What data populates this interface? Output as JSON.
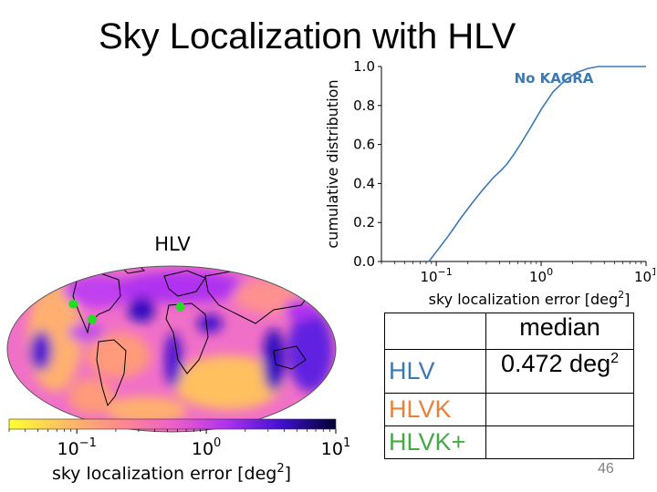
{
  "slide": {
    "title": "Sky Localization with HLV",
    "page_number": "46"
  },
  "chart_data": [
    {
      "type": "line",
      "annotation": "No KAGRA",
      "xlabel": "sky localization error [deg",
      "xlabel_sup": "2",
      "xlabel_end": "]",
      "ylabel": "cumulative distribution",
      "xscale": "log",
      "xlim": [
        0.03,
        10
      ],
      "ylim": [
        0.0,
        1.0
      ],
      "yticks": [
        "0.0",
        "0.2",
        "0.4",
        "0.6",
        "0.8",
        "1.0"
      ],
      "xticks": [
        {
          "value": 0.1,
          "base": "10",
          "exp": "−1"
        },
        {
          "value": 1,
          "base": "10",
          "exp": "0"
        },
        {
          "value": 10,
          "base": "10",
          "exp": "1"
        }
      ],
      "color": "#3b79b4",
      "series": [
        {
          "name": "HLV",
          "x": [
            0.085,
            0.1,
            0.13,
            0.17,
            0.22,
            0.28,
            0.35,
            0.42,
            0.472,
            0.55,
            0.65,
            0.8,
            1.0,
            1.3,
            1.7,
            2.2,
            2.8,
            3.5,
            5.0,
            10.0
          ],
          "y": [
            0.0,
            0.05,
            0.13,
            0.22,
            0.3,
            0.37,
            0.43,
            0.47,
            0.5,
            0.55,
            0.61,
            0.69,
            0.78,
            0.87,
            0.93,
            0.97,
            0.99,
            1.0,
            1.0,
            1.0
          ]
        }
      ]
    },
    {
      "type": "heatmap",
      "title": "HLV",
      "projection": "mollweide",
      "colorbar": {
        "label": "sky localization error [deg",
        "label_sup": "2",
        "label_end": "]",
        "ticks": [
          {
            "value": 0.1,
            "base": "10",
            "exp": "−1"
          },
          {
            "value": 1,
            "base": "10",
            "exp": "0"
          },
          {
            "value": 10,
            "base": "10",
            "exp": "1"
          }
        ],
        "range": [
          0.03,
          10
        ],
        "colors": [
          "#ffff30",
          "#ffc060",
          "#ff8a8a",
          "#f060c8",
          "#b030f0",
          "#4010d0",
          "#000030"
        ]
      },
      "detector_color": "#22dd22",
      "detectors": [
        {
          "name": "LIGO Hanford",
          "lon": -119.4,
          "lat": 46.5
        },
        {
          "name": "LIGO Livingston",
          "lon": -90.8,
          "lat": 30.6
        },
        {
          "name": "Virgo",
          "lon": 10.5,
          "lat": 43.6
        }
      ]
    }
  ],
  "table": {
    "header": "median",
    "rows": [
      {
        "label": "HLV",
        "color": "#3b79b4",
        "value": "0.472 deg",
        "value_sup": "2"
      },
      {
        "label": "HLVK",
        "color": "#e8813a",
        "value": "",
        "value_sup": ""
      },
      {
        "label": "HLVK+",
        "color": "#48a848",
        "value": "",
        "value_sup": ""
      }
    ]
  }
}
